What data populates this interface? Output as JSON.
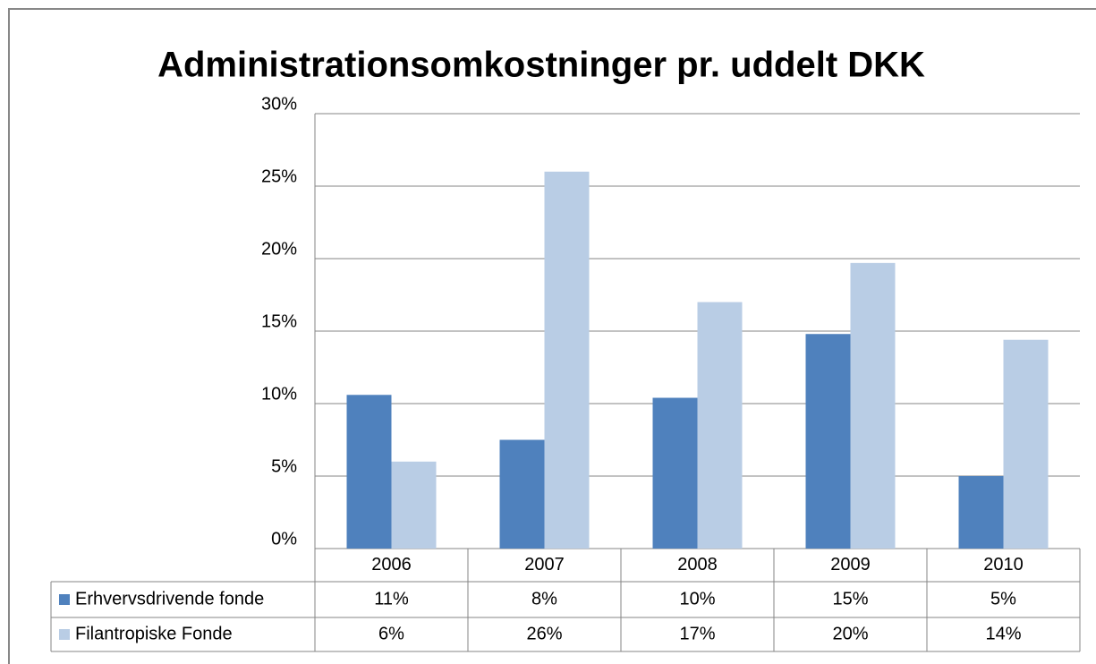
{
  "chart_data": {
    "type": "bar",
    "title": "Administrationsomkostninger pr. uddelt DKK",
    "categories": [
      "2006",
      "2007",
      "2008",
      "2009",
      "2010"
    ],
    "series": [
      {
        "name": "Erhvervsdrivende fonde",
        "color": "#4f81bd",
        "values": [
          10.6,
          7.5,
          10.4,
          14.8,
          5.0
        ],
        "value_labels": [
          "11%",
          "8%",
          "10%",
          "15%",
          "5%"
        ]
      },
      {
        "name": "Filantropiske Fonde",
        "color": "#b9cde5",
        "values": [
          6.0,
          26.0,
          17.0,
          19.7,
          14.4
        ],
        "value_labels": [
          "6%",
          "26%",
          "17%",
          "20%",
          "14%"
        ]
      }
    ],
    "ylim": [
      0,
      30
    ],
    "yticks": [
      {
        "value": 0,
        "label": "0%"
      },
      {
        "value": 5,
        "label": "5%"
      },
      {
        "value": 10,
        "label": "10%"
      },
      {
        "value": 15,
        "label": "15%"
      },
      {
        "value": 20,
        "label": "20%"
      },
      {
        "value": 25,
        "label": "25%"
      },
      {
        "value": 30,
        "label": "30%"
      }
    ],
    "grid": true,
    "data_table": true
  }
}
